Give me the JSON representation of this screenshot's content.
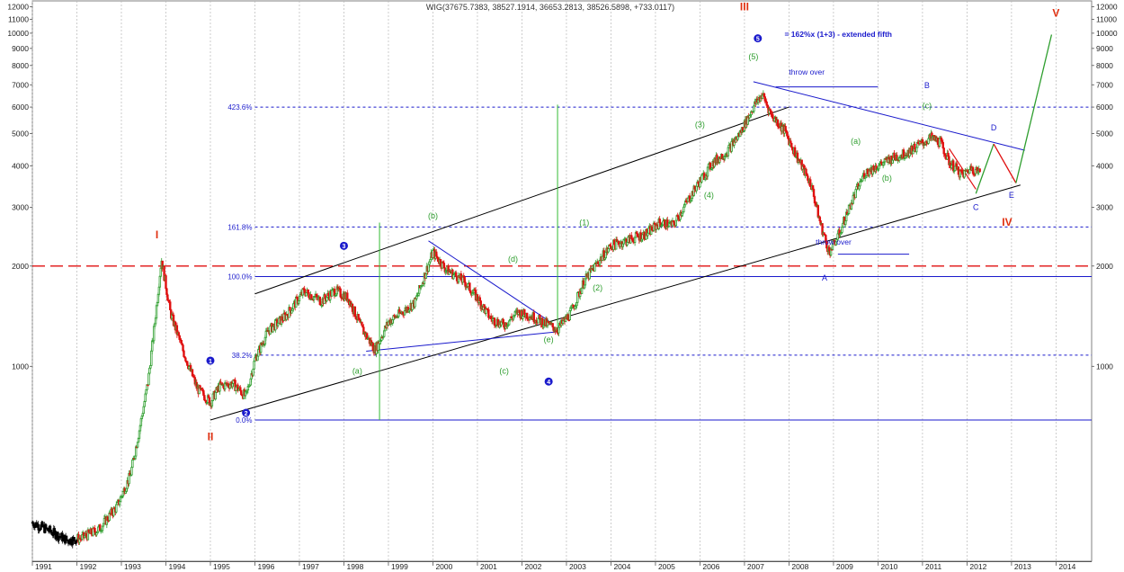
{
  "chart_data": {
    "type": "candlestick",
    "title": "WIG(37675.7383, 38527.1914, 36653.2813, 38526.5898, +733.0117)",
    "y_scale": "log",
    "ylim": [
      260,
      12500
    ],
    "y_ticks": [
      2000,
      3000,
      4000,
      5000,
      6000,
      7000,
      8000,
      9000,
      10000,
      11000,
      12000,
      1000
    ],
    "y_tick_labels": [
      "2000",
      "3000",
      "4000",
      "5000",
      "6000",
      "7000",
      "8000",
      "9000",
      "10000",
      "11000",
      "12000",
      "1000"
    ],
    "x_ticks": [
      "1991",
      "1992",
      "1993",
      "1994",
      "1995",
      "1996",
      "1997",
      "1998",
      "1999",
      "2000",
      "2001",
      "2002",
      "2003",
      "2004",
      "2005",
      "2006",
      "2007",
      "2008",
      "2009",
      "2010",
      "2011",
      "2012",
      "2013",
      "2014"
    ],
    "x_range": [
      1991.0,
      2014.8
    ],
    "up_color": "#2e9e2e",
    "down_color": "#e01010",
    "early_color": "#000000",
    "fib_levels": [
      {
        "label": "423.6%",
        "value": 6000,
        "color": "#1a1acc"
      },
      {
        "label": "161.8%",
        "value": 2620,
        "color": "#1a1acc"
      },
      {
        "label": "100.0%",
        "value": 1860,
        "color": "#1a1acc"
      },
      {
        "label": "38.2%",
        "value": 1080,
        "color": "#1a1acc"
      },
      {
        "label": "0.0%",
        "value": 690,
        "color": "#1a1acc"
      }
    ],
    "red_dashed_level": 2000,
    "channel": {
      "upper": [
        [
          1996.0,
          1650
        ],
        [
          2008.0,
          6000
        ]
      ],
      "lower": [
        [
          1995.0,
          690
        ],
        [
          2013.2,
          3500
        ]
      ]
    },
    "wave_labels": [
      {
        "text": "I",
        "x": 1993.8,
        "y": 2420,
        "color": "#e03010",
        "size": 12
      },
      {
        "text": "II",
        "x": 1995.0,
        "y": 600,
        "color": "#e03010",
        "size": 12
      },
      {
        "text": "III",
        "x": 2007.0,
        "y": 11700,
        "color": "#e03010",
        "size": 12
      },
      {
        "text": "IV",
        "x": 2012.9,
        "y": 2640,
        "color": "#e03010",
        "size": 12
      },
      {
        "text": "V",
        "x": 2014.0,
        "y": 11200,
        "color": "#e03010",
        "size": 12
      },
      {
        "text": "(b)",
        "x": 2000.0,
        "y": 2780,
        "color": "#2e9e2e",
        "size": 9
      },
      {
        "text": "(d)",
        "x": 2001.8,
        "y": 2060,
        "color": "#2e9e2e",
        "size": 9
      },
      {
        "text": "(a)",
        "x": 1998.3,
        "y": 950,
        "color": "#2e9e2e",
        "size": 9
      },
      {
        "text": "(c)",
        "x": 2001.6,
        "y": 950,
        "color": "#2e9e2e",
        "size": 9
      },
      {
        "text": "(e)",
        "x": 2002.6,
        "y": 1180,
        "color": "#2e9e2e",
        "size": 9
      },
      {
        "text": "(1)",
        "x": 2003.4,
        "y": 2650,
        "color": "#2e9e2e",
        "size": 9
      },
      {
        "text": "(2)",
        "x": 2003.7,
        "y": 1690,
        "color": "#2e9e2e",
        "size": 9
      },
      {
        "text": "(3)",
        "x": 2006.0,
        "y": 5220,
        "color": "#2e9e2e",
        "size": 9
      },
      {
        "text": "(4)",
        "x": 2006.2,
        "y": 3200,
        "color": "#2e9e2e",
        "size": 9
      },
      {
        "text": "(5)",
        "x": 2007.2,
        "y": 8350,
        "color": "#2e9e2e",
        "size": 9
      },
      {
        "text": "(a)",
        "x": 2009.5,
        "y": 4650,
        "color": "#2e9e2e",
        "size": 9
      },
      {
        "text": "(b)",
        "x": 2010.2,
        "y": 3600,
        "color": "#2e9e2e",
        "size": 9
      },
      {
        "text": "(c)",
        "x": 2011.1,
        "y": 5950,
        "color": "#2e9e2e",
        "size": 9
      },
      {
        "text": "A",
        "x": 2008.8,
        "y": 1810,
        "color": "#1a1acc",
        "size": 9
      },
      {
        "text": "B",
        "x": 2011.1,
        "y": 6850,
        "color": "#1a1acc",
        "size": 9
      },
      {
        "text": "C",
        "x": 2012.2,
        "y": 2950,
        "color": "#1a1acc",
        "size": 9
      },
      {
        "text": "D",
        "x": 2012.6,
        "y": 5100,
        "color": "#1a1acc",
        "size": 9
      },
      {
        "text": "E",
        "x": 2013.0,
        "y": 3200,
        "color": "#1a1acc",
        "size": 9
      }
    ],
    "circled_labels": [
      {
        "text": "1",
        "x": 1995.0,
        "y": 1040
      },
      {
        "text": "2",
        "x": 1995.8,
        "y": 725
      },
      {
        "text": "3",
        "x": 1998.0,
        "y": 2300
      },
      {
        "text": "4",
        "x": 2002.6,
        "y": 900
      },
      {
        "text": "5",
        "x": 2007.3,
        "y": 9650
      }
    ],
    "annotations": [
      {
        "text": "= 162%x (1+3) - extended fifth",
        "x": 2007.9,
        "y": 9750,
        "color": "#1a1acc",
        "bold": true
      },
      {
        "text": "throw over",
        "x": 2008.0,
        "y": 7500,
        "color": "#1a1acc",
        "bold": false
      },
      {
        "text": "throw over",
        "x": 2008.6,
        "y": 2320,
        "color": "#1a1acc",
        "bold": false
      }
    ],
    "throw_over_lines": [
      {
        "x1": 2007.7,
        "y1": 6900,
        "x2": 2010.0,
        "y2": 6900
      },
      {
        "x1": 2009.1,
        "y1": 2170,
        "x2": 2010.7,
        "y2": 2170
      }
    ],
    "blue_trendlines": [
      [
        [
          1999.9,
          2380
        ],
        [
          2002.6,
          1370
        ]
      ],
      [
        [
          1998.5,
          1110
        ],
        [
          2002.8,
          1270
        ]
      ],
      [
        [
          2007.2,
          7150
        ],
        [
          2013.3,
          4450
        ]
      ]
    ],
    "green_verticals": [
      {
        "x": 1998.8,
        "y1": 690,
        "y2": 2700
      },
      {
        "x": 2002.8,
        "y1": 1250,
        "y2": 6100
      }
    ],
    "projection": [
      [
        2012.2,
        3300
      ],
      [
        2012.6,
        4650
      ],
      [
        2013.1,
        3550
      ],
      [
        2013.9,
        9900
      ]
    ],
    "red_projection_points": [
      [
        2011.6,
        4500
      ],
      [
        2012.2,
        3400
      ]
    ],
    "series_path": [
      [
        1991.0,
        340
      ],
      [
        1991.4,
        320
      ],
      [
        1991.8,
        300
      ],
      [
        1992.1,
        305
      ],
      [
        1992.5,
        325
      ],
      [
        1992.9,
        380
      ],
      [
        1993.2,
        470
      ],
      [
        1993.4,
        640
      ],
      [
        1993.6,
        900
      ],
      [
        1993.75,
        1350
      ],
      [
        1993.9,
        2100
      ],
      [
        1994.1,
        1450
      ],
      [
        1994.4,
        1100
      ],
      [
        1994.7,
        860
      ],
      [
        1995.0,
        780
      ],
      [
        1995.2,
        870
      ],
      [
        1995.5,
        890
      ],
      [
        1995.8,
        810
      ],
      [
        1996.0,
        1050
      ],
      [
        1996.3,
        1280
      ],
      [
        1996.7,
        1420
      ],
      [
        1997.1,
        1680
      ],
      [
        1997.5,
        1570
      ],
      [
        1997.8,
        1690
      ],
      [
        1998.1,
        1600
      ],
      [
        1998.4,
        1300
      ],
      [
        1998.7,
        1120
      ],
      [
        1999.0,
        1360
      ],
      [
        1999.3,
        1450
      ],
      [
        1999.6,
        1560
      ],
      [
        2000.0,
        2200
      ],
      [
        2000.3,
        1950
      ],
      [
        2000.7,
        1800
      ],
      [
        2001.0,
        1600
      ],
      [
        2001.3,
        1390
      ],
      [
        2001.6,
        1330
      ],
      [
        2001.9,
        1450
      ],
      [
        2002.2,
        1420
      ],
      [
        2002.5,
        1350
      ],
      [
        2002.8,
        1290
      ],
      [
        2003.1,
        1450
      ],
      [
        2003.4,
        1800
      ],
      [
        2003.7,
        2050
      ],
      [
        2004.0,
        2300
      ],
      [
        2004.4,
        2400
      ],
      [
        2004.8,
        2500
      ],
      [
        2005.1,
        2700
      ],
      [
        2005.4,
        2650
      ],
      [
        2005.7,
        3100
      ],
      [
        2006.0,
        3600
      ],
      [
        2006.3,
        4100
      ],
      [
        2006.6,
        4400
      ],
      [
        2006.9,
        5000
      ],
      [
        2007.2,
        6000
      ],
      [
        2007.4,
        6550
      ],
      [
        2007.6,
        5700
      ],
      [
        2007.9,
        5100
      ],
      [
        2008.2,
        4200
      ],
      [
        2008.5,
        3500
      ],
      [
        2008.7,
        2700
      ],
      [
        2008.9,
        2200
      ],
      [
        2009.1,
        2450
      ],
      [
        2009.4,
        3100
      ],
      [
        2009.7,
        3800
      ],
      [
        2010.0,
        4000
      ],
      [
        2010.3,
        4200
      ],
      [
        2010.6,
        4350
      ],
      [
        2010.9,
        4600
      ],
      [
        2011.2,
        4850
      ],
      [
        2011.4,
        4700
      ],
      [
        2011.6,
        4100
      ],
      [
        2011.9,
        3750
      ],
      [
        2012.1,
        3950
      ],
      [
        2012.3,
        3800
      ]
    ]
  }
}
